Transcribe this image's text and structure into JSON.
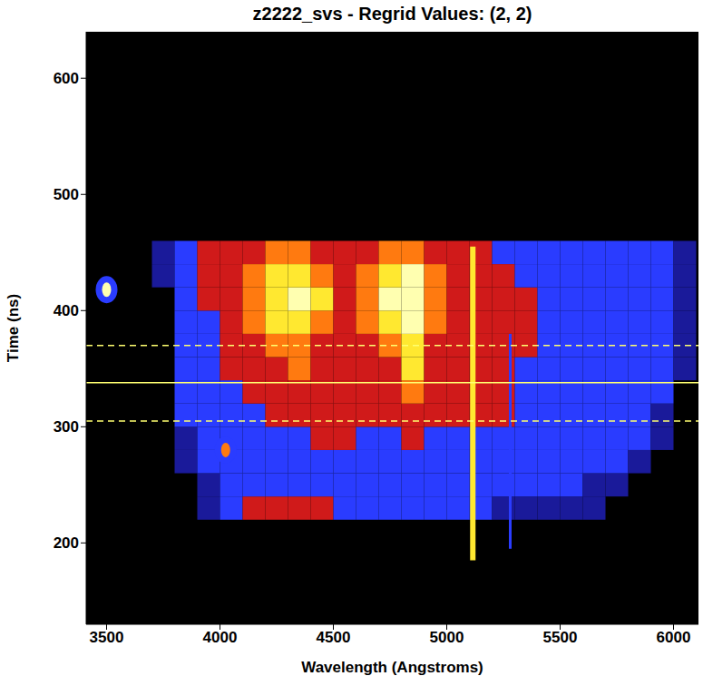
{
  "chart_data": {
    "type": "heatmap",
    "title": "z2222_svs - Regrid Values: (2, 2)",
    "x_label": "Wavelength (Angstroms)",
    "y_label": "Time (ns)",
    "xlim": [
      3410,
      6110
    ],
    "ylim": [
      130,
      640
    ],
    "xticks": [
      3500,
      4000,
      4500,
      5000,
      5500,
      6000
    ],
    "yticks": [
      200,
      300,
      400,
      500,
      600
    ],
    "x_edges": [
      3700,
      3800,
      3900,
      4000,
      4100,
      4200,
      4300,
      4400,
      4500,
      4600,
      4700,
      4800,
      4900,
      5000,
      5100,
      5200,
      5300,
      5400,
      5500,
      5600,
      5700,
      5800,
      5900,
      6000,
      6100
    ],
    "y_edges": [
      220,
      240,
      260,
      280,
      300,
      320,
      340,
      360,
      380,
      400,
      420,
      440,
      460
    ],
    "cells": [
      [
        0,
        0,
        1,
        2,
        3,
        3,
        3,
        3,
        2,
        2,
        2,
        2,
        2,
        2,
        2,
        1,
        1,
        1,
        1,
        1,
        0,
        0,
        0,
        0
      ],
      [
        0,
        0,
        1,
        2,
        2,
        2,
        2,
        2,
        2,
        2,
        2,
        2,
        2,
        2,
        2,
        2,
        2,
        2,
        2,
        1,
        1,
        0,
        0,
        0
      ],
      [
        0,
        1,
        2,
        2,
        2,
        2,
        2,
        2,
        2,
        2,
        2,
        2,
        2,
        2,
        2,
        2,
        2,
        2,
        2,
        2,
        2,
        1,
        0,
        0
      ],
      [
        0,
        1,
        2,
        2,
        2,
        2,
        2,
        3,
        3,
        2,
        2,
        3,
        2,
        2,
        2,
        2,
        2,
        2,
        2,
        2,
        2,
        2,
        1,
        0
      ],
      [
        0,
        2,
        2,
        2,
        2,
        3,
        3,
        3,
        3,
        3,
        3,
        3,
        3,
        3,
        3,
        3,
        2,
        2,
        2,
        2,
        2,
        2,
        1,
        0
      ],
      [
        0,
        2,
        2,
        2,
        3,
        3,
        3,
        3,
        3,
        3,
        3,
        4,
        3,
        3,
        3,
        3,
        2,
        2,
        2,
        2,
        2,
        2,
        2,
        0
      ],
      [
        0,
        2,
        2,
        3,
        3,
        3,
        4,
        3,
        3,
        3,
        3,
        5,
        3,
        3,
        3,
        3,
        2,
        2,
        2,
        2,
        2,
        2,
        2,
        1
      ],
      [
        0,
        2,
        2,
        3,
        3,
        4,
        4,
        3,
        3,
        3,
        4,
        5,
        3,
        3,
        3,
        3,
        3,
        2,
        2,
        2,
        2,
        2,
        2,
        1
      ],
      [
        0,
        2,
        2,
        3,
        4,
        5,
        5,
        4,
        3,
        4,
        5,
        6,
        4,
        3,
        3,
        3,
        3,
        2,
        2,
        2,
        2,
        2,
        2,
        1
      ],
      [
        0,
        2,
        3,
        3,
        4,
        5,
        6,
        5,
        3,
        4,
        6,
        6,
        4,
        3,
        3,
        3,
        3,
        2,
        2,
        2,
        2,
        2,
        2,
        1
      ],
      [
        1,
        2,
        3,
        3,
        4,
        5,
        5,
        4,
        3,
        4,
        5,
        6,
        4,
        3,
        3,
        3,
        2,
        2,
        2,
        2,
        2,
        2,
        2,
        1
      ],
      [
        1,
        2,
        3,
        3,
        3,
        4,
        4,
        3,
        3,
        3,
        4,
        4,
        3,
        3,
        3,
        2,
        2,
        2,
        2,
        2,
        2,
        2,
        2,
        1
      ]
    ],
    "color_range": [
      0,
      6
    ],
    "colors": [
      "#000000",
      "#1a1a9a",
      "#2a3cff",
      "#d01a1a",
      "#ff7a10",
      "#ffe830",
      "#ffffb0"
    ],
    "streaks": [
      {
        "wavelength": 5115,
        "t_start": 185,
        "t_end": 455,
        "level": 5
      },
      {
        "wavelength": 5280,
        "t_start": 195,
        "t_end": 380,
        "level": 2
      }
    ],
    "spots": [
      {
        "wavelength": 3500,
        "time": 418,
        "level": 6
      },
      {
        "wavelength": 4025,
        "time": 280,
        "level": 4
      }
    ],
    "markers": [
      {
        "time": 338,
        "line_style": "solid"
      },
      {
        "time": 305,
        "line_style": "dashed"
      },
      {
        "time": 370,
        "line_style": "dashed"
      }
    ]
  }
}
